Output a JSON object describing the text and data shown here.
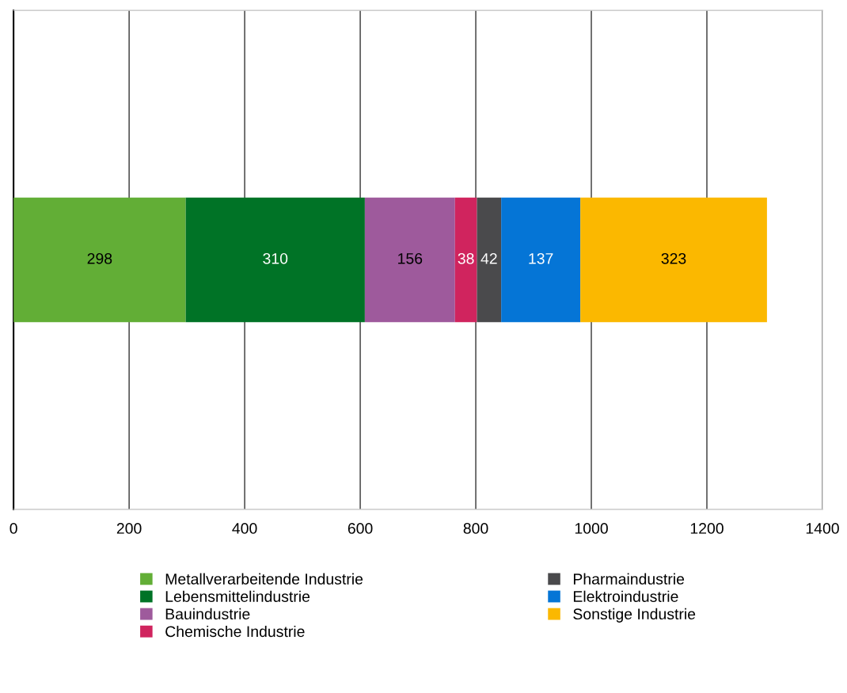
{
  "chart_data": {
    "type": "bar",
    "orientation": "horizontal",
    "stacked": true,
    "categories": [
      null
    ],
    "series": [
      {
        "name": "Metallverarbeitende Industrie",
        "color": "#62ae36",
        "values": [
          298
        ]
      },
      {
        "name": "Lebensmittelindustrie",
        "color": "#007326",
        "values": [
          310
        ]
      },
      {
        "name": "Bauindustrie",
        "color": "#9e5a9c",
        "values": [
          156
        ]
      },
      {
        "name": "Chemische Industrie",
        "color": "#d0245e",
        "values": [
          38
        ]
      },
      {
        "name": "Pharmaindustrie",
        "color": "#4a4a4c",
        "values": [
          42
        ]
      },
      {
        "name": "Elektroindustrie",
        "color": "#0575d6",
        "values": [
          137
        ]
      },
      {
        "name": "Sonstige Industrie",
        "color": "#fbb800",
        "values": [
          323
        ]
      }
    ],
    "xlim": [
      0,
      1400
    ],
    "xticks": [
      0,
      200,
      400,
      600,
      800,
      1000,
      1200,
      1400
    ],
    "data_labels": true,
    "grid": "x",
    "legend": "bottom",
    "tick_labels": "x"
  }
}
